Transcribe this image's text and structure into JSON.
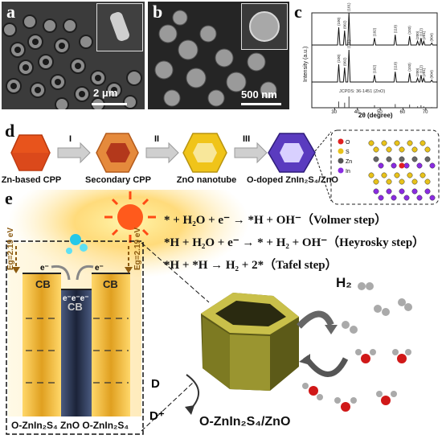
{
  "panels": {
    "a": {
      "label": "a",
      "scale": "2 μm"
    },
    "b": {
      "label": "b",
      "scale": "500 nm"
    },
    "c": {
      "label": "c"
    },
    "d": {
      "label": "d"
    },
    "e": {
      "label": "e"
    }
  },
  "chart_data": {
    "type": "line",
    "ylabel": "Intensity (a.u.)",
    "xlabel": "2θ (degree)",
    "xlim": [
      20,
      75
    ],
    "x_ticks": [
      "30",
      "40",
      "50",
      "60",
      "70"
    ],
    "reference_label": "JCPDS: 36-1451 (ZnO)",
    "peaks": [
      {
        "x": 31.8,
        "label": "(100)",
        "h": 0.55
      },
      {
        "x": 34.4,
        "label": "(002)",
        "h": 0.45
      },
      {
        "x": 36.3,
        "label": "(101)",
        "h": 1.0
      },
      {
        "x": 47.5,
        "label": "(102)",
        "h": 0.22
      },
      {
        "x": 56.6,
        "label": "(110)",
        "h": 0.32
      },
      {
        "x": 62.9,
        "label": "(103)",
        "h": 0.28
      },
      {
        "x": 66.4,
        "label": "(200)",
        "h": 0.12
      },
      {
        "x": 67.9,
        "label": "(112)",
        "h": 0.22
      },
      {
        "x": 69.1,
        "label": "(201)",
        "h": 0.12
      },
      {
        "x": 72.6,
        "label": "(004)",
        "h": 0.06
      }
    ]
  },
  "process": {
    "steps": [
      {
        "name": "Zn-based CPP",
        "color": "#e8541c"
      },
      {
        "name": "Secondary CPP",
        "color": "#e07a2a"
      },
      {
        "name": "ZnO nanotube",
        "color": "#e8c21a"
      },
      {
        "name": "O-doped ZnIn₂S₄/ZnO",
        "color": "#5b3bbf"
      }
    ],
    "arrows": [
      "I",
      "II",
      "III"
    ],
    "legend": [
      {
        "symbol": "O",
        "color": "#e02020"
      },
      {
        "symbol": "S",
        "color": "#e8c21a"
      },
      {
        "symbol": "Zn",
        "color": "#555555"
      },
      {
        "symbol": "In",
        "color": "#8a2be2"
      }
    ]
  },
  "mechanism": {
    "equations": [
      "* + H₂O + e⁻ → *H + OH⁻（Volmer step）",
      "*H + H₂O + e⁻ → * + H₂ + OH⁻（Heyrosky step）",
      "*H + *H → H₂ + 2*（Tafel step）"
    ],
    "band_left": "Eg=2.19 eV",
    "band_right": "Eg=2.19 eV",
    "cb": "CB",
    "electron": "e⁻",
    "electrons_center": "e⁻e⁻e⁻",
    "bottom_label": "O-ZnIn₂S₄ ZnO O-ZnIn₂S₄",
    "product": "H₂",
    "donor": "D",
    "donor_ox": "D⁺",
    "material": "O-ZnIn₂S₄/ZnO"
  }
}
